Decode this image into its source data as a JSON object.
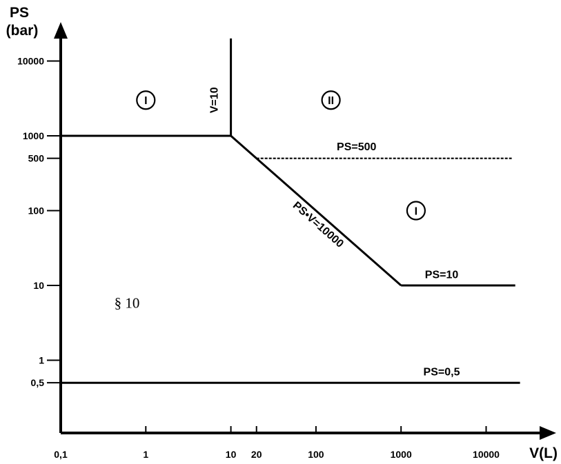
{
  "chart_data": {
    "type": "line",
    "title": "",
    "ylabel": "PS",
    "ylabel_unit": "(bar)",
    "xlabel": "V(L)",
    "x_scale": "log",
    "y_scale": "log",
    "xlim": [
      0.1,
      25000
    ],
    "ylim": [
      0.5,
      20000
    ],
    "grid": false,
    "x_ticks": [
      {
        "value": 0.1,
        "label": "0,1"
      },
      {
        "value": 1,
        "label": "1"
      },
      {
        "value": 10,
        "label": "10"
      },
      {
        "value": 20,
        "label": "20"
      },
      {
        "value": 100,
        "label": "100"
      },
      {
        "value": 1000,
        "label": "1000"
      },
      {
        "value": 10000,
        "label": "10000"
      }
    ],
    "y_ticks": [
      {
        "value": 10000,
        "label": "10000"
      },
      {
        "value": 1000,
        "label": "1000"
      },
      {
        "value": 500,
        "label": "500"
      },
      {
        "value": 100,
        "label": "100"
      },
      {
        "value": 10,
        "label": "10"
      },
      {
        "value": 1,
        "label": "1"
      },
      {
        "value": 0.5,
        "label": "0,5"
      }
    ],
    "series": [
      {
        "id": "boundary-ps-1000",
        "points": [
          [
            0.1,
            1000
          ],
          [
            10,
            1000
          ]
        ]
      },
      {
        "id": "boundary-v-10",
        "points": [
          [
            10,
            1000
          ],
          [
            10,
            20000
          ]
        ]
      },
      {
        "id": "boundary-psv-10000",
        "points": [
          [
            10,
            1000
          ],
          [
            1000,
            10
          ]
        ]
      },
      {
        "id": "boundary-ps-500",
        "points": [
          [
            20,
            500
          ],
          [
            20000,
            500
          ]
        ]
      },
      {
        "id": "boundary-ps-10",
        "points": [
          [
            1000,
            10
          ],
          [
            22000,
            10
          ]
        ]
      },
      {
        "id": "boundary-ps-05",
        "points": [
          [
            0.1,
            0.5
          ],
          [
            25000,
            0.5
          ]
        ]
      }
    ],
    "line_labels": [
      {
        "id": "label-v-10",
        "text": "V=10",
        "x": 7,
        "y": 3000
      },
      {
        "id": "label-ps-500",
        "text": "PS=500",
        "x": 300,
        "y": 640
      },
      {
        "id": "label-psv-10000",
        "text": "PS•V=10000",
        "x": 100,
        "y": 60
      },
      {
        "id": "label-ps-10",
        "text": "PS=10",
        "x": 3000,
        "y": 12.5
      },
      {
        "id": "label-ps-05",
        "text": "PS=0,5",
        "x": 3000,
        "y": 0.63
      }
    ],
    "region_labels": [
      {
        "id": "region-cat-1-left",
        "text": "I",
        "x": 1,
        "y": 3000
      },
      {
        "id": "region-cat-2",
        "text": "II",
        "x": 150,
        "y": 3000
      },
      {
        "id": "region-cat-1-right",
        "text": "I",
        "x": 1500,
        "y": 100
      }
    ],
    "annotations": [
      {
        "id": "note-section-10",
        "text": "§ 10",
        "x": 0.6,
        "y": 5
      }
    ]
  }
}
